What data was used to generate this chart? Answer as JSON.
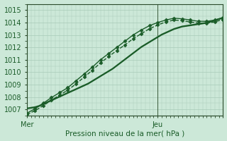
{
  "xlabel": "Pression niveau de la mer( hPa )",
  "background_color": "#cce8d8",
  "grid_color": "#a8cbb8",
  "line_color": "#1a5c28",
  "ylim": [
    1006.5,
    1015.5
  ],
  "xlim": [
    0,
    48
  ],
  "x_ticks_major": [
    0,
    32,
    48
  ],
  "x_tick_labels": [
    "Mer",
    "Jeu",
    ""
  ],
  "y_ticks": [
    1007,
    1008,
    1009,
    1010,
    1011,
    1012,
    1013,
    1014,
    1015
  ],
  "vline_x": 32,
  "series": [
    {
      "x": [
        0,
        1,
        2,
        3,
        4,
        5,
        6,
        7,
        8,
        9,
        10,
        11,
        12,
        13,
        14,
        15,
        16,
        17,
        18,
        19,
        20,
        21,
        22,
        23,
        24,
        25,
        26,
        27,
        28,
        29,
        30,
        31,
        32,
        33,
        34,
        35,
        36,
        37,
        38,
        39,
        40,
        41,
        42,
        43,
        44,
        45,
        46,
        47,
        48
      ],
      "y": [
        1007.1,
        1007.15,
        1007.2,
        1007.3,
        1007.45,
        1007.6,
        1007.75,
        1007.9,
        1008.05,
        1008.2,
        1008.35,
        1008.5,
        1008.65,
        1008.8,
        1008.95,
        1009.1,
        1009.3,
        1009.5,
        1009.7,
        1009.9,
        1010.1,
        1010.3,
        1010.55,
        1010.8,
        1011.05,
        1011.3,
        1011.55,
        1011.8,
        1012.05,
        1012.25,
        1012.45,
        1012.65,
        1012.85,
        1013.05,
        1013.2,
        1013.35,
        1013.5,
        1013.6,
        1013.7,
        1013.75,
        1013.8,
        1013.85,
        1013.9,
        1013.95,
        1014.0,
        1014.1,
        1014.2,
        1014.3,
        1014.4
      ],
      "style": "solid",
      "marker": null,
      "linewidth": 1.2
    },
    {
      "x": [
        0,
        1,
        2,
        3,
        4,
        5,
        6,
        7,
        8,
        9,
        10,
        11,
        12,
        13,
        14,
        15,
        16,
        17,
        18,
        19,
        20,
        21,
        22,
        23,
        24,
        25,
        26,
        27,
        28,
        29,
        30,
        31,
        32,
        33,
        34,
        35,
        36,
        37,
        38,
        39,
        40,
        41,
        42,
        43,
        44,
        45,
        46,
        47,
        48
      ],
      "y": [
        1007.05,
        1007.1,
        1007.15,
        1007.25,
        1007.4,
        1007.55,
        1007.7,
        1007.85,
        1008.0,
        1008.15,
        1008.3,
        1008.45,
        1008.6,
        1008.75,
        1008.9,
        1009.05,
        1009.25,
        1009.45,
        1009.65,
        1009.85,
        1010.05,
        1010.25,
        1010.5,
        1010.75,
        1011.0,
        1011.25,
        1011.5,
        1011.75,
        1012.0,
        1012.2,
        1012.4,
        1012.6,
        1012.8,
        1013.0,
        1013.15,
        1013.3,
        1013.45,
        1013.55,
        1013.65,
        1013.7,
        1013.75,
        1013.8,
        1013.85,
        1013.9,
        1013.95,
        1014.05,
        1014.15,
        1014.25,
        1014.35
      ],
      "style": "solid",
      "marker": null,
      "linewidth": 1.0
    },
    {
      "x": [
        0,
        2,
        4,
        6,
        8,
        10,
        12,
        14,
        16,
        18,
        20,
        22,
        24,
        26,
        28,
        30,
        32,
        34,
        36,
        38,
        40,
        42,
        44,
        46,
        48
      ],
      "y": [
        1006.7,
        1007.05,
        1007.5,
        1007.95,
        1008.35,
        1008.75,
        1009.3,
        1009.85,
        1010.4,
        1011.0,
        1011.5,
        1012.0,
        1012.5,
        1013.0,
        1013.4,
        1013.75,
        1014.0,
        1014.2,
        1014.35,
        1014.3,
        1014.2,
        1014.1,
        1014.1,
        1014.2,
        1014.4
      ],
      "style": "solid",
      "marker": "D",
      "markersize": 2.5,
      "linewidth": 1.0
    },
    {
      "x": [
        0,
        2,
        4,
        6,
        8,
        10,
        12,
        14,
        16,
        18,
        20,
        22,
        24,
        26,
        28,
        30,
        32,
        34,
        36,
        38,
        40,
        42,
        44,
        46,
        48
      ],
      "y": [
        1006.6,
        1006.9,
        1007.3,
        1007.75,
        1008.15,
        1008.55,
        1009.05,
        1009.6,
        1010.15,
        1010.75,
        1011.25,
        1011.75,
        1012.2,
        1012.7,
        1013.1,
        1013.5,
        1013.8,
        1014.05,
        1014.2,
        1014.15,
        1014.05,
        1013.95,
        1013.95,
        1014.05,
        1014.25
      ],
      "style": "dashed",
      "marker": "D",
      "markersize": 2.5,
      "linewidth": 1.0
    }
  ]
}
